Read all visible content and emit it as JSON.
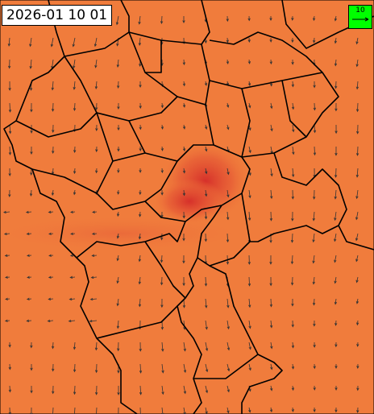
{
  "timestamp": "2026-01 10 01",
  "legend": {
    "label": 10
  }
}
